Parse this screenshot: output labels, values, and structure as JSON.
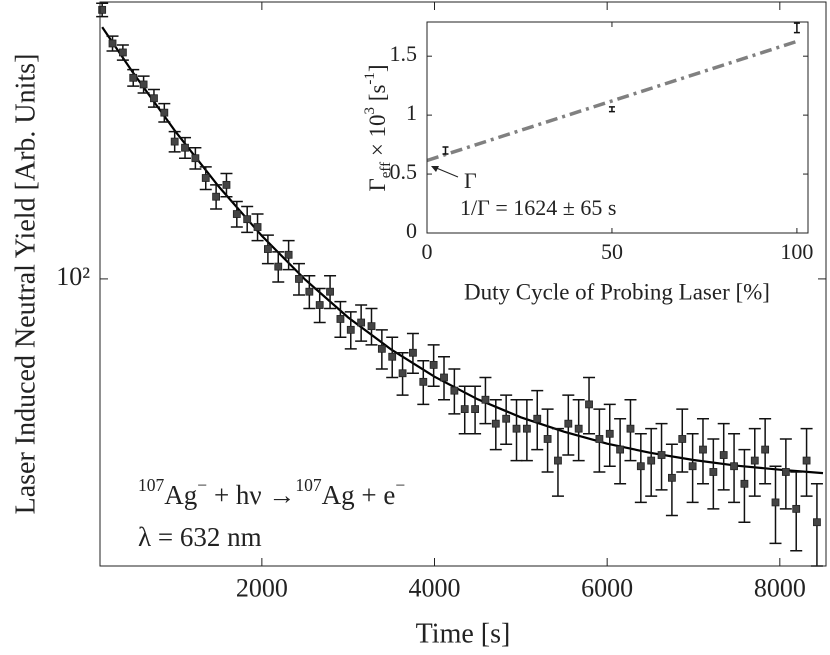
{
  "chart_data": [
    {
      "type": "scatter",
      "xlabel": "Time [s]",
      "ylabel": "Laser Induced Neutral Yield [Arb. Units]",
      "xlim": [
        125,
        8535
      ],
      "ylim": [
        40,
        242
      ],
      "log_y": true,
      "xticks": [
        2000,
        4000,
        6000,
        8000
      ],
      "yticks": [
        {
          "value": 100,
          "label": "10²"
        }
      ],
      "color": "#444444",
      "x": [
        150,
        270,
        390,
        510,
        630,
        750,
        870,
        990,
        1110,
        1230,
        1350,
        1470,
        1590,
        1710,
        1830,
        1950,
        2070,
        2190,
        2310,
        2430,
        2550,
        2670,
        2790,
        2910,
        3030,
        3150,
        3270,
        3390,
        3510,
        3630,
        3750,
        3870,
        3990,
        4110,
        4230,
        4350,
        4470,
        4590,
        4710,
        4830,
        4950,
        5070,
        5190,
        5310,
        5430,
        5550,
        5670,
        5790,
        5910,
        6030,
        6150,
        6270,
        6390,
        6510,
        6630,
        6750,
        6870,
        6990,
        7110,
        7230,
        7350,
        7470,
        7590,
        7710,
        7830,
        7950,
        8070,
        8190,
        8310,
        8430
      ],
      "values": [
        236,
        212,
        206,
        190,
        186,
        178,
        170,
        155,
        152,
        147,
        138,
        130,
        135,
        123,
        121,
        118,
        110,
        104,
        108,
        100,
        96,
        92,
        96,
        88,
        85,
        87,
        86,
        80,
        78,
        74,
        79,
        72,
        76,
        73,
        70,
        66,
        66,
        68,
        63,
        64,
        62,
        62,
        64,
        60,
        56,
        63,
        62,
        67,
        60,
        61,
        58,
        62,
        55,
        56,
        57,
        53,
        60,
        55,
        58,
        54,
        57,
        55,
        52,
        56,
        58,
        49,
        54,
        48,
        56,
        46
      ],
      "errors": [
        5,
        5,
        5,
        5,
        5,
        5,
        5,
        5,
        5,
        5,
        5,
        5,
        5,
        5,
        5,
        5,
        5,
        5,
        5,
        5,
        5,
        5,
        5,
        5,
        5,
        5,
        5,
        5,
        5,
        5,
        5,
        5,
        5,
        5,
        5,
        5,
        5,
        5,
        5,
        5,
        6,
        6,
        6,
        6,
        6,
        6,
        6,
        6,
        6,
        6,
        6,
        6,
        6,
        6,
        6,
        6,
        6,
        6,
        6,
        6,
        6,
        6,
        6,
        6,
        6,
        6,
        6,
        6,
        6,
        6
      ],
      "fit": {
        "color": "#000000",
        "x": [
          150,
          500,
          1000,
          1500,
          2000,
          2500,
          3000,
          3500,
          4000,
          4500,
          5000,
          5500,
          6000,
          6500,
          7000,
          7500,
          8000,
          8500
        ],
        "values": [
          223.4,
          193.7,
          160,
          134.3,
          114.7,
          99.8,
          88.4,
          79.8,
          73.2,
          68.1,
          64.3,
          61.4,
          59.1,
          57.4,
          56.1,
          55.1,
          54.4,
          53.8
        ]
      },
      "annotation": [
        {
          "text": "107",
          "style": "sup"
        },
        {
          "text": "Ag",
          "style": "normal"
        },
        {
          "text": "−",
          "style": "sup"
        },
        {
          "text": " + hν →",
          "style": "normal"
        },
        {
          "text": "107",
          "style": "sup"
        },
        {
          "text": "Ag + e",
          "style": "normal"
        },
        {
          "text": "−",
          "style": "sup"
        }
      ],
      "annotation2": "λ = 632 nm"
    },
    {
      "type": "scatter",
      "xlabel": "Duty Cycle of Probing Laser [%]",
      "ylabel": [
        {
          "text": "Γ",
          "style": "normal"
        },
        {
          "text": "eff",
          "style": "sub"
        },
        {
          "text": " × 10",
          "style": "normal"
        },
        {
          "text": "3",
          "style": "sup"
        },
        {
          "text": " [s",
          "style": "normal"
        },
        {
          "text": "-1",
          "style": "sup"
        },
        {
          "text": "]",
          "style": "normal"
        }
      ],
      "xlim": [
        0,
        103
      ],
      "ylim": [
        0,
        1.79
      ],
      "xticks": [
        0,
        50,
        100
      ],
      "yticks": [
        0,
        0.5,
        1,
        1.5
      ],
      "color": "#000000",
      "x": [
        5,
        50,
        100
      ],
      "values": [
        0.7,
        1.05,
        1.74
      ],
      "errors": [
        0.03,
        0.02,
        0.04
      ],
      "fit": {
        "color": "#808080",
        "x": [
          0,
          100
        ],
        "values": [
          0.615,
          1.625
        ]
      },
      "annotation": "Γ",
      "annotation2": "1/Γ = 1624 ± 65 s"
    }
  ]
}
